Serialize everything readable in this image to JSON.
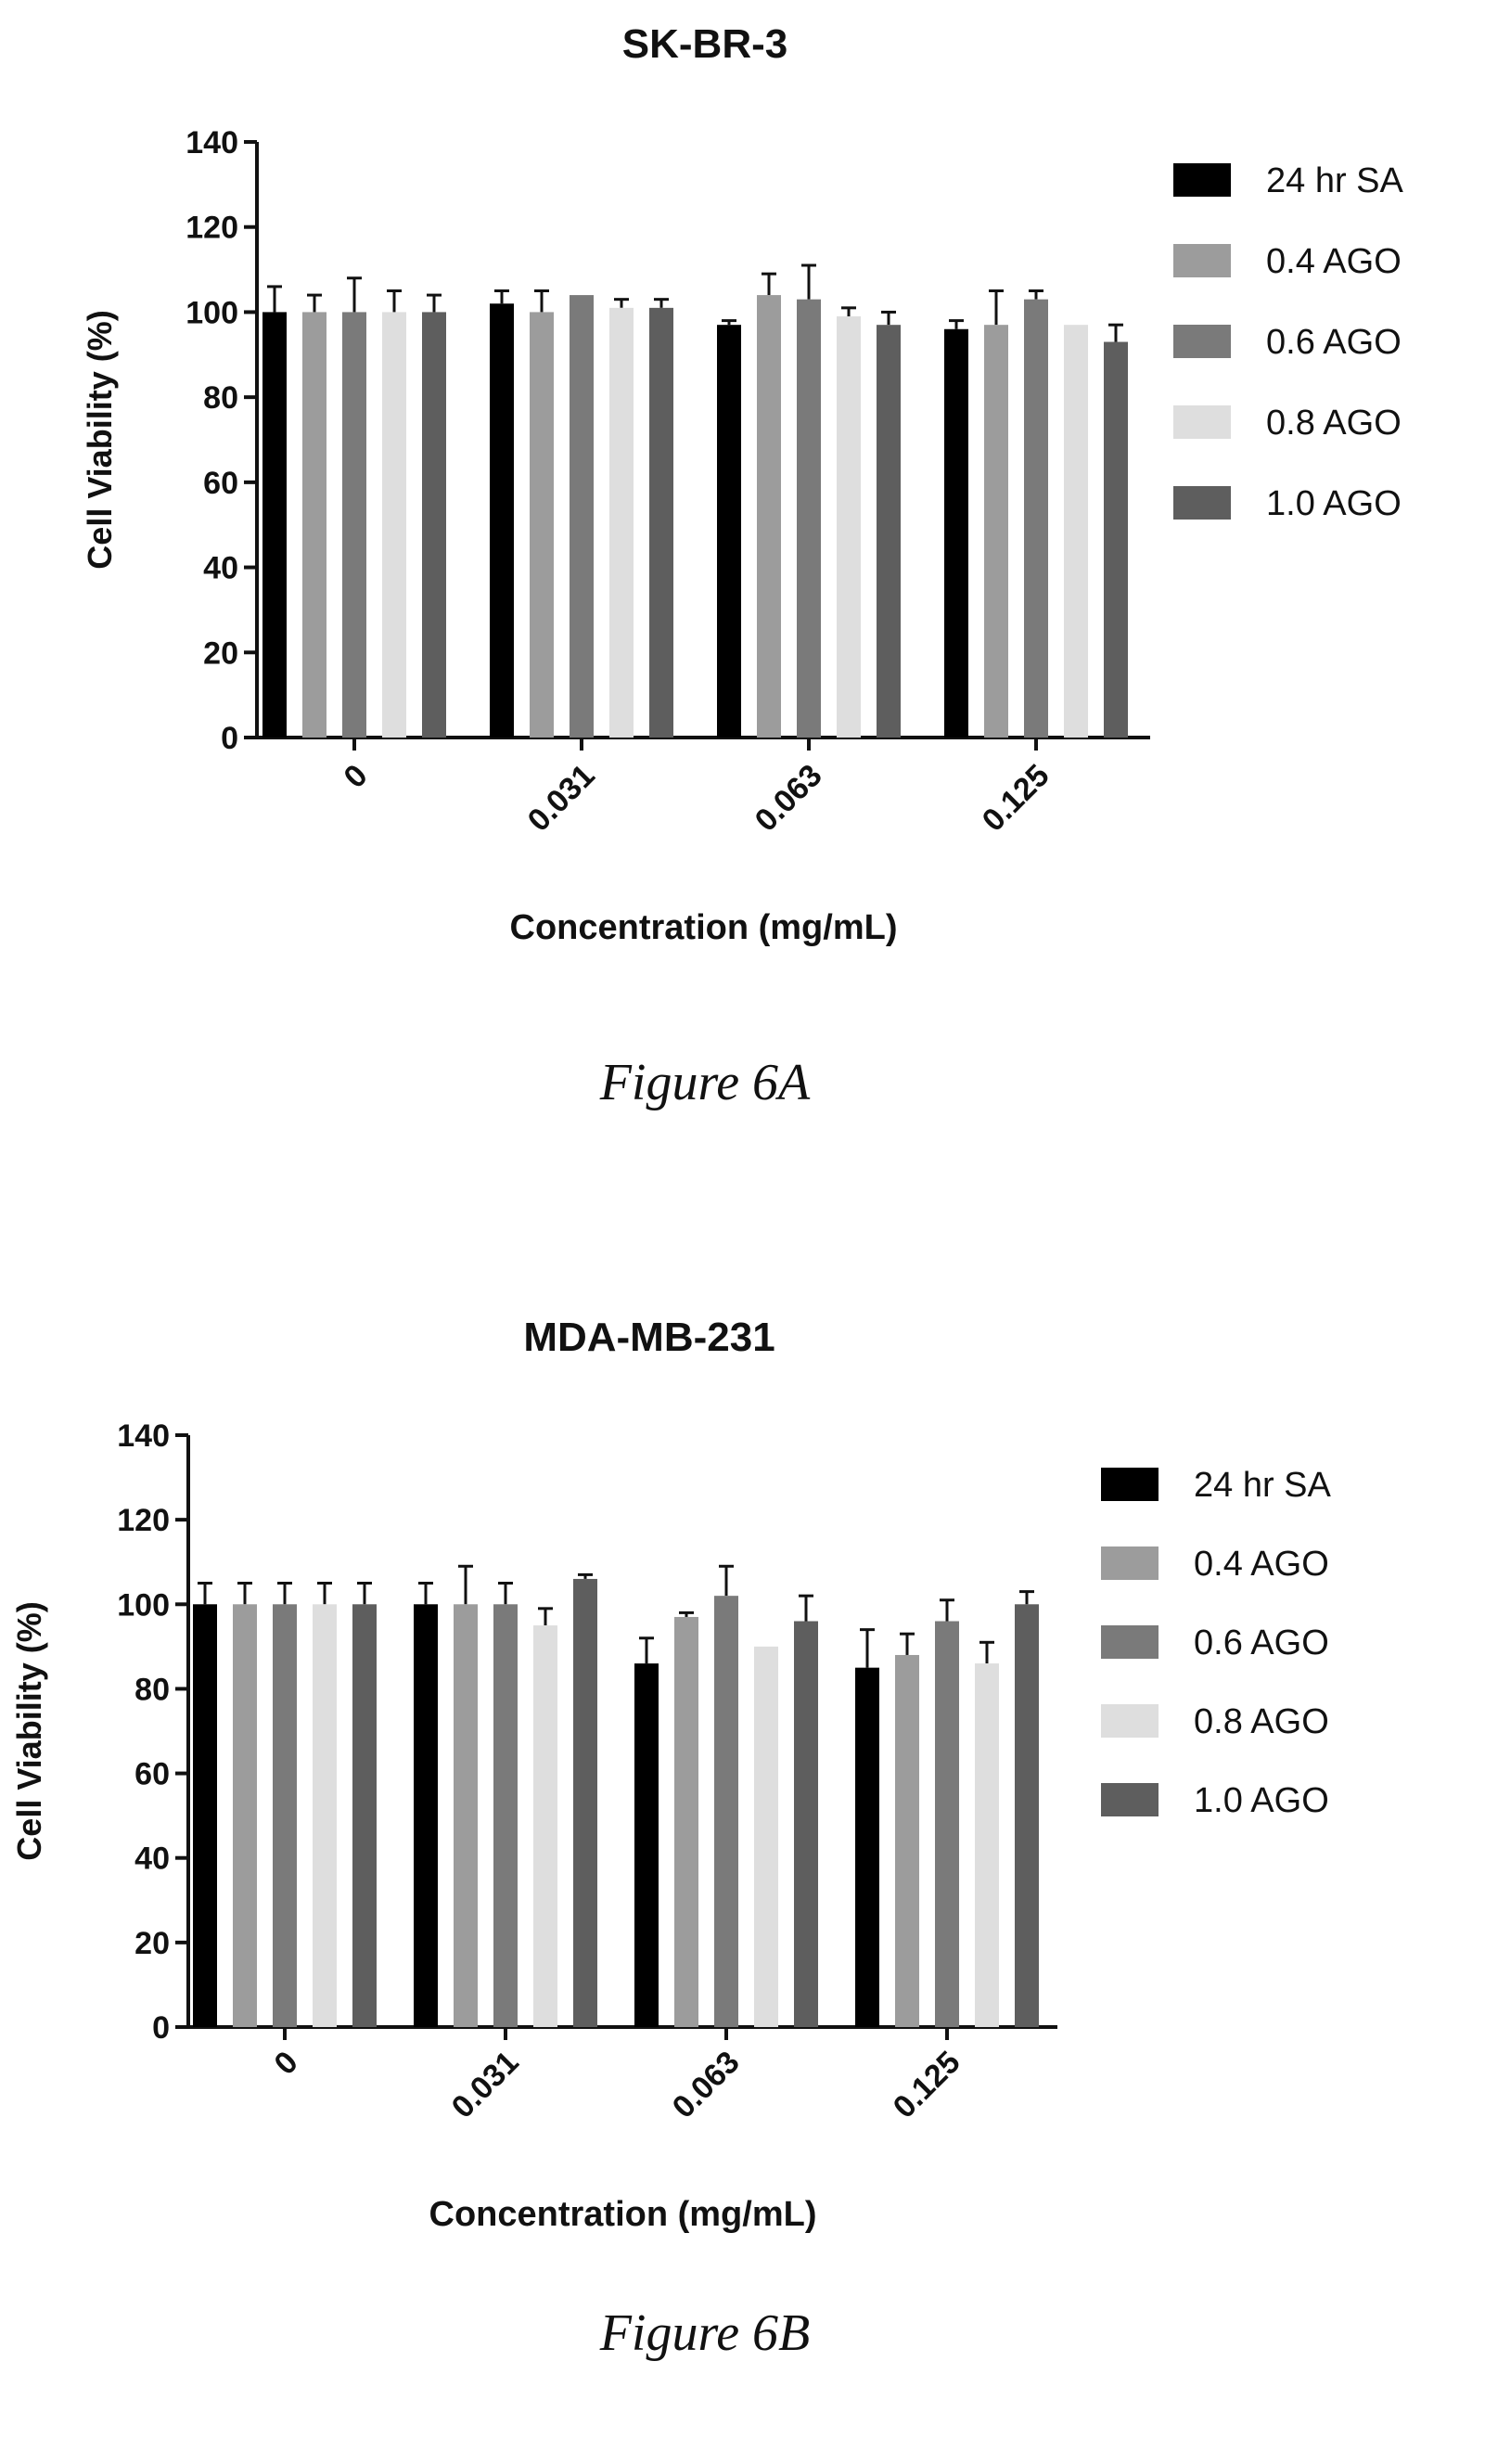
{
  "figures": [
    {
      "caption": "Figure 6A",
      "chart_data": {
        "type": "bar",
        "title": "SK-BR-3",
        "xlabel": "Concentration (mg/mL)",
        "ylabel": "Cell Viability (%)",
        "categories": [
          "0",
          "0.031",
          "0.063",
          "0.125"
        ],
        "ylim": [
          0,
          140
        ],
        "yticks": [
          0,
          20,
          40,
          60,
          80,
          100,
          120,
          140
        ],
        "legend_position": "right",
        "series": [
          {
            "name": "24 hr SA",
            "color": "#000000",
            "values": [
              100,
              102,
              97,
              96
            ],
            "errors": [
              6,
              3,
              1,
              2
            ]
          },
          {
            "name": "0.4 AGO",
            "color": "#9c9c9c",
            "values": [
              100,
              100,
              104,
              97
            ],
            "errors": [
              4,
              5,
              5,
              8
            ]
          },
          {
            "name": "0.6 AGO",
            "color": "#7a7a7a",
            "values": [
              100,
              104,
              103,
              103
            ],
            "errors": [
              8,
              0,
              8,
              2
            ]
          },
          {
            "name": "0.8 AGO",
            "color": "#dedede",
            "values": [
              100,
              101,
              99,
              97
            ],
            "errors": [
              5,
              2,
              2,
              0
            ]
          },
          {
            "name": "1.0 AGO",
            "color": "#5e5e5e",
            "values": [
              100,
              101,
              97,
              93
            ],
            "errors": [
              4,
              2,
              3,
              4
            ]
          }
        ]
      }
    },
    {
      "caption": "Figure 6B",
      "chart_data": {
        "type": "bar",
        "title": "MDA-MB-231",
        "xlabel": "Concentration (mg/mL)",
        "ylabel": "Cell Viability (%)",
        "categories": [
          "0",
          "0.031",
          "0.063",
          "0.125"
        ],
        "ylim": [
          0,
          140
        ],
        "yticks": [
          0,
          20,
          40,
          60,
          80,
          100,
          120,
          140
        ],
        "legend_position": "right",
        "series": [
          {
            "name": "24 hr SA",
            "color": "#000000",
            "values": [
              100,
              100,
              86,
              85
            ],
            "errors": [
              5,
              5,
              6,
              9
            ]
          },
          {
            "name": "0.4 AGO",
            "color": "#9c9c9c",
            "values": [
              100,
              100,
              97,
              88
            ],
            "errors": [
              5,
              9,
              1,
              5
            ]
          },
          {
            "name": "0.6 AGO",
            "color": "#7a7a7a",
            "values": [
              100,
              100,
              102,
              96
            ],
            "errors": [
              5,
              5,
              7,
              5
            ]
          },
          {
            "name": "0.8 AGO",
            "color": "#dedede",
            "values": [
              100,
              95,
              90,
              86
            ],
            "errors": [
              5,
              4,
              0,
              5
            ]
          },
          {
            "name": "1.0 AGO",
            "color": "#5e5e5e",
            "values": [
              100,
              106,
              96,
              100
            ],
            "errors": [
              5,
              1,
              6,
              3
            ]
          }
        ]
      }
    }
  ]
}
